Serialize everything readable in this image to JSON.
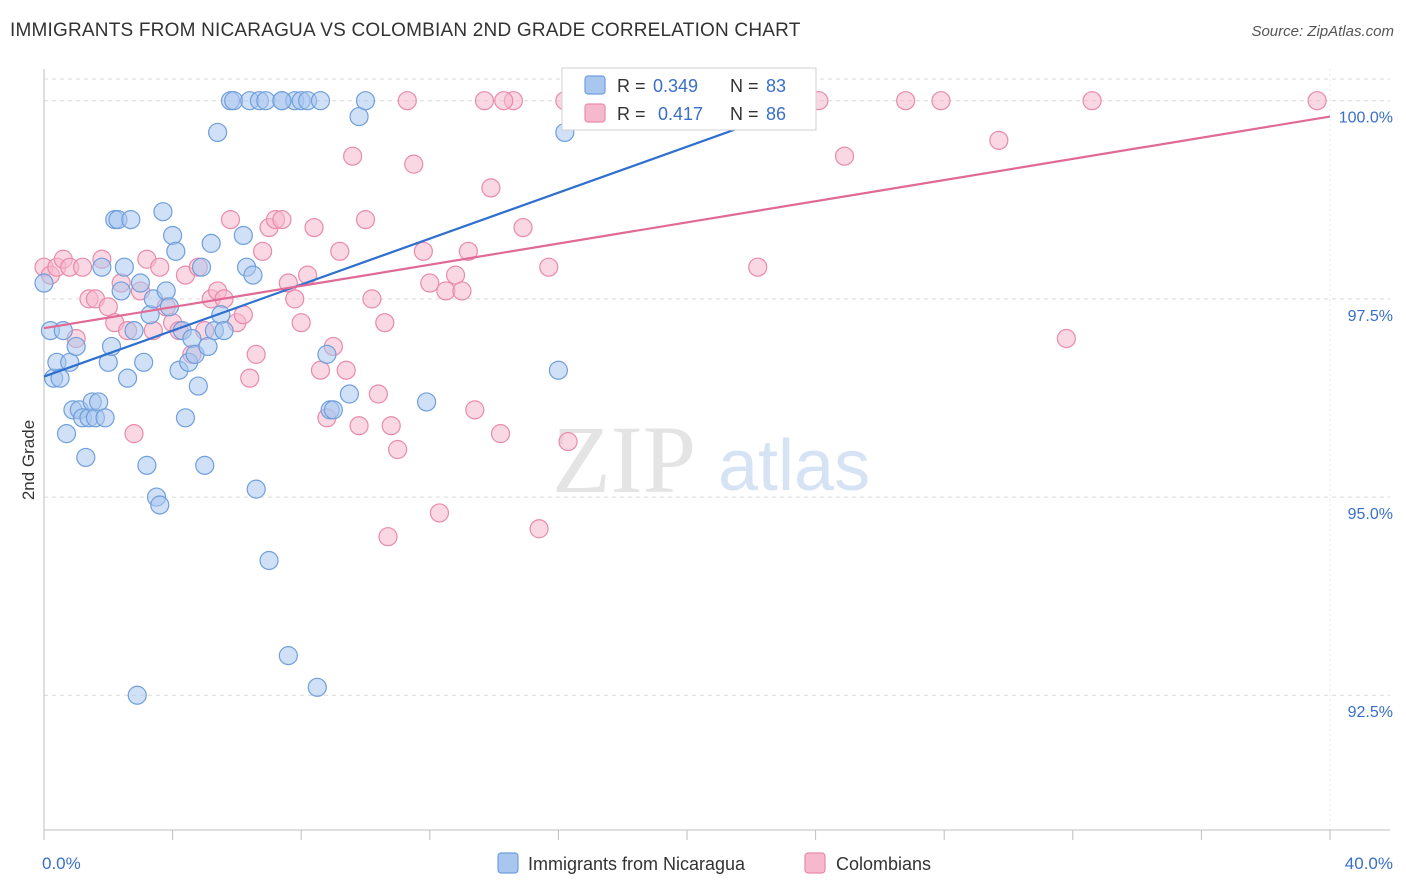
{
  "header": {
    "title": "IMMIGRANTS FROM NICARAGUA VS COLOMBIAN 2ND GRADE CORRELATION CHART",
    "source": "Source: ZipAtlas.com"
  },
  "watermark": {
    "zip": "ZIP",
    "atlas": "atlas"
  },
  "colors": {
    "blue_fill": "#a9c6ef",
    "blue_stroke": "#6f9fdc",
    "blue_line": "#2f6fd0",
    "pink_fill": "#f5b8cc",
    "pink_stroke": "#e98aaa",
    "pink_line": "#e06a95",
    "grid": "#d9d9d9",
    "axis_text": "#3a6fc8"
  },
  "stats": {
    "r_label": "R =",
    "n_label": "N =",
    "blue": {
      "r": "0.349",
      "n": "83"
    },
    "pink": {
      "r": "0.417",
      "n": "86"
    }
  },
  "legend": {
    "blue": "Immigrants from Nicaragua",
    "pink": "Colombians"
  },
  "chart_data": {
    "type": "scatter",
    "title": "IMMIGRANTS FROM NICARAGUA VS COLOMBIAN 2ND GRADE CORRELATION CHART",
    "xlabel": "",
    "ylabel": "2nd Grade",
    "xlim": [
      0,
      40
    ],
    "ylim": [
      90.8,
      100.4
    ],
    "x_tick_labels": [
      "0.0%",
      "40.0%"
    ],
    "y_ticks": [
      92.5,
      95.0,
      97.5,
      100.0
    ],
    "y_tick_labels": [
      "92.5%",
      "95.0%",
      "97.5%",
      "100.0%"
    ],
    "grid": true,
    "legend_position": "bottom",
    "series": [
      {
        "name": "Immigrants from Nicaragua",
        "color": "blue",
        "r": 0.349,
        "n": 83,
        "trend": [
          [
            0,
            96.52
          ],
          [
            24.0,
            100.0
          ]
        ],
        "points": [
          [
            0.0,
            97.7
          ],
          [
            0.2,
            97.1
          ],
          [
            0.3,
            96.5
          ],
          [
            0.4,
            96.7
          ],
          [
            0.5,
            96.5
          ],
          [
            0.6,
            97.1
          ],
          [
            0.7,
            95.8
          ],
          [
            0.8,
            96.7
          ],
          [
            0.9,
            96.1
          ],
          [
            1.0,
            96.9
          ],
          [
            1.1,
            96.1
          ],
          [
            1.2,
            96.0
          ],
          [
            1.3,
            95.5
          ],
          [
            1.4,
            96.0
          ],
          [
            1.5,
            96.2
          ],
          [
            1.6,
            96.0
          ],
          [
            1.7,
            96.2
          ],
          [
            1.8,
            97.9
          ],
          [
            1.9,
            96.0
          ],
          [
            2.0,
            96.7
          ],
          [
            2.1,
            96.9
          ],
          [
            2.2,
            98.5
          ],
          [
            2.3,
            98.5
          ],
          [
            2.4,
            97.6
          ],
          [
            2.5,
            97.9
          ],
          [
            2.6,
            96.5
          ],
          [
            2.7,
            98.5
          ],
          [
            2.8,
            97.1
          ],
          [
            3.0,
            97.7
          ],
          [
            3.1,
            96.7
          ],
          [
            3.2,
            95.4
          ],
          [
            3.3,
            97.3
          ],
          [
            3.4,
            97.5
          ],
          [
            3.5,
            95.0
          ],
          [
            3.6,
            94.9
          ],
          [
            3.7,
            98.6
          ],
          [
            3.8,
            97.6
          ],
          [
            3.9,
            97.4
          ],
          [
            4.0,
            98.3
          ],
          [
            4.1,
            98.1
          ],
          [
            4.2,
            96.6
          ],
          [
            4.3,
            97.1
          ],
          [
            4.4,
            96.0
          ],
          [
            4.5,
            96.7
          ],
          [
            4.6,
            97.0
          ],
          [
            4.7,
            96.8
          ],
          [
            4.8,
            96.4
          ],
          [
            4.9,
            97.9
          ],
          [
            5.0,
            95.4
          ],
          [
            5.1,
            96.9
          ],
          [
            5.2,
            98.2
          ],
          [
            5.3,
            97.1
          ],
          [
            5.4,
            99.6
          ],
          [
            5.5,
            97.3
          ],
          [
            5.6,
            97.1
          ],
          [
            5.8,
            100.0
          ],
          [
            5.9,
            100.0
          ],
          [
            6.2,
            98.3
          ],
          [
            6.3,
            97.9
          ],
          [
            6.4,
            100.0
          ],
          [
            6.5,
            97.8
          ],
          [
            6.6,
            95.1
          ],
          [
            6.7,
            100.0
          ],
          [
            6.9,
            100.0
          ],
          [
            7.0,
            94.2
          ],
          [
            7.4,
            100.0
          ],
          [
            7.6,
            93.0
          ],
          [
            7.8,
            100.0
          ],
          [
            8.0,
            100.0
          ],
          [
            8.2,
            100.0
          ],
          [
            8.5,
            92.6
          ],
          [
            8.6,
            100.0
          ],
          [
            8.8,
            96.8
          ],
          [
            8.9,
            96.1
          ],
          [
            9.0,
            96.1
          ],
          [
            9.5,
            96.3
          ],
          [
            9.8,
            99.8
          ],
          [
            10.0,
            100.0
          ],
          [
            11.9,
            96.2
          ],
          [
            16.0,
            96.6
          ],
          [
            16.2,
            99.6
          ],
          [
            2.9,
            92.5
          ],
          [
            7.4,
            100.0
          ]
        ]
      },
      {
        "name": "Colombians",
        "color": "pink",
        "r": 0.417,
        "n": 86,
        "trend": [
          [
            0,
            97.13
          ],
          [
            40.0,
            99.8
          ]
        ],
        "points": [
          [
            0.0,
            97.9
          ],
          [
            0.2,
            97.8
          ],
          [
            0.4,
            97.9
          ],
          [
            0.6,
            98.0
          ],
          [
            0.8,
            97.9
          ],
          [
            1.0,
            97.0
          ],
          [
            1.2,
            97.9
          ],
          [
            1.4,
            97.5
          ],
          [
            1.6,
            97.5
          ],
          [
            1.8,
            98.0
          ],
          [
            2.0,
            97.4
          ],
          [
            2.2,
            97.2
          ],
          [
            2.4,
            97.7
          ],
          [
            2.6,
            97.1
          ],
          [
            2.8,
            95.8
          ],
          [
            3.0,
            97.6
          ],
          [
            3.2,
            98.0
          ],
          [
            3.4,
            97.1
          ],
          [
            3.6,
            97.9
          ],
          [
            3.8,
            97.4
          ],
          [
            4.0,
            97.2
          ],
          [
            4.2,
            97.1
          ],
          [
            4.4,
            97.8
          ],
          [
            4.6,
            96.8
          ],
          [
            4.8,
            97.9
          ],
          [
            5.0,
            97.1
          ],
          [
            5.2,
            97.5
          ],
          [
            5.4,
            97.6
          ],
          [
            5.6,
            97.5
          ],
          [
            5.8,
            98.5
          ],
          [
            6.0,
            97.2
          ],
          [
            6.2,
            97.3
          ],
          [
            6.4,
            96.5
          ],
          [
            6.6,
            96.8
          ],
          [
            6.8,
            98.1
          ],
          [
            7.0,
            98.4
          ],
          [
            7.2,
            98.5
          ],
          [
            7.4,
            98.5
          ],
          [
            7.6,
            97.7
          ],
          [
            7.8,
            97.5
          ],
          [
            8.0,
            97.2
          ],
          [
            8.2,
            97.8
          ],
          [
            8.4,
            98.4
          ],
          [
            8.6,
            96.6
          ],
          [
            8.8,
            96.0
          ],
          [
            9.0,
            96.9
          ],
          [
            9.2,
            98.1
          ],
          [
            9.4,
            96.6
          ],
          [
            9.6,
            99.3
          ],
          [
            9.8,
            95.9
          ],
          [
            10.0,
            98.5
          ],
          [
            10.2,
            97.5
          ],
          [
            10.4,
            96.3
          ],
          [
            10.6,
            97.2
          ],
          [
            10.8,
            95.9
          ],
          [
            11.0,
            95.6
          ],
          [
            11.3,
            100.0
          ],
          [
            11.5,
            99.2
          ],
          [
            11.8,
            98.1
          ],
          [
            12.0,
            97.7
          ],
          [
            12.3,
            94.8
          ],
          [
            12.5,
            97.6
          ],
          [
            12.8,
            97.8
          ],
          [
            13.0,
            97.6
          ],
          [
            13.2,
            98.1
          ],
          [
            13.4,
            96.1
          ],
          [
            13.7,
            100.0
          ],
          [
            13.9,
            98.9
          ],
          [
            14.2,
            95.8
          ],
          [
            14.6,
            100.0
          ],
          [
            14.9,
            98.4
          ],
          [
            15.4,
            94.6
          ],
          [
            15.7,
            97.9
          ],
          [
            16.2,
            100.0
          ],
          [
            16.3,
            95.7
          ],
          [
            22.2,
            97.9
          ],
          [
            24.1,
            100.0
          ],
          [
            24.9,
            99.3
          ],
          [
            26.8,
            100.0
          ],
          [
            27.9,
            100.0
          ],
          [
            29.7,
            99.5
          ],
          [
            31.8,
            97.0
          ],
          [
            32.6,
            100.0
          ],
          [
            39.6,
            100.0
          ],
          [
            10.7,
            94.5
          ],
          [
            14.3,
            100.0
          ]
        ]
      }
    ]
  }
}
